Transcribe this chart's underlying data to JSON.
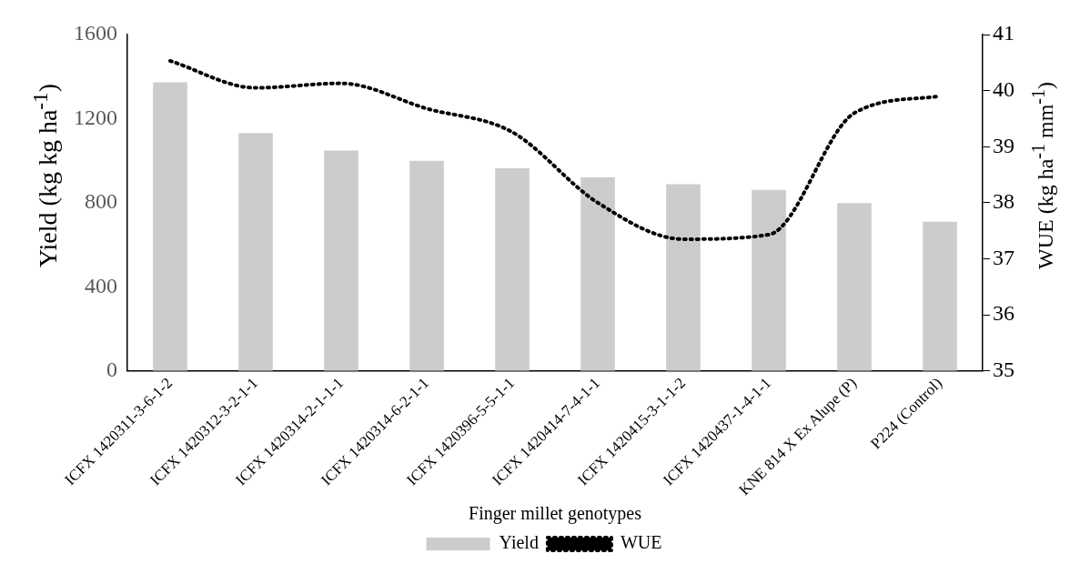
{
  "chart_data": {
    "type": "bar",
    "xlabel": "Finger millet genotypes",
    "ylabel": "Yield (kg kg ha$^{-1}$)",
    "y2label": "WUE (kg ha$^{-1}$ mm$^{-1}$)",
    "categories": [
      "ICFX 1420311-3-6-1-2",
      "ICFX 1420312-3-2-1-1",
      "ICFX 1420314-2-1-1-1",
      "ICFX 1420314-6-2-1-1",
      "ICFX 1420396-5-5-1-1",
      "ICFX 1420414-7-4-1-1",
      "ICFX 1420415-3-1-1-2",
      "ICFX 1420437-1-4-1-1",
      "KNE 814 X Ex Alupe (P)",
      "P224 (Control)"
    ],
    "series": [
      {
        "name": "Yield",
        "color": "#cccccc",
        "values": [
          1373,
          1132,
          1048,
          1000,
          964,
          921,
          888,
          861,
          798,
          710
        ]
      },
      {
        "name": "WUE",
        "type": "line",
        "axis": "y2",
        "color": "#000000",
        "line_style": "dotted",
        "marker": "none",
        "values": [
          40.53,
          40.05,
          40.13,
          39.68,
          39.26,
          38.0,
          37.35,
          37.43,
          39.6,
          39.9
        ]
      }
    ],
    "ylim": [
      0,
      1600
    ],
    "yticks": [
      0,
      400,
      800,
      1200,
      1600
    ],
    "y2lim": [
      35,
      41
    ],
    "y2ticks": [
      35,
      36,
      37,
      38,
      39,
      40,
      41
    ],
    "grid": false,
    "legend": "bottom"
  }
}
